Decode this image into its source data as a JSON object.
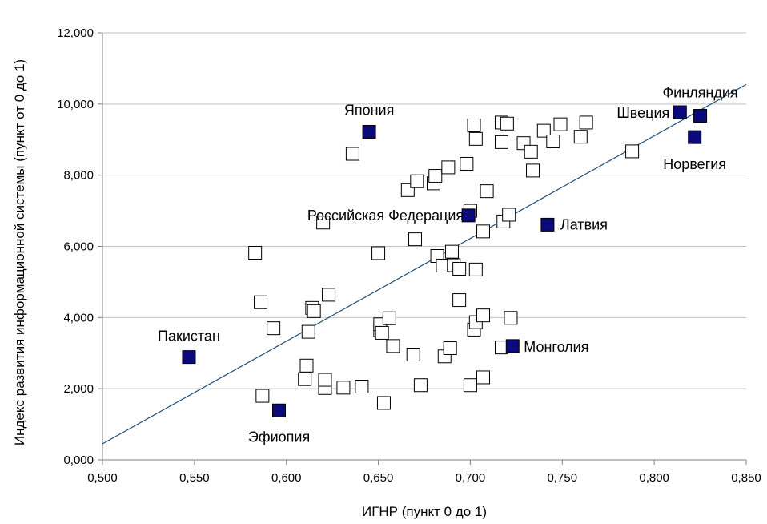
{
  "chart_data": {
    "type": "scatter",
    "xlabel": "ИГНР (пункт 0 до 1)",
    "ylabel": "Индекс развития информационной системы (пункт от 0 до 1)",
    "xlim": [
      0.5,
      0.85
    ],
    "ylim": [
      0,
      12
    ],
    "x_ticks": [
      0.5,
      0.55,
      0.6,
      0.65,
      0.7,
      0.75,
      0.8,
      0.85
    ],
    "y_ticks": [
      0,
      2,
      4,
      6,
      8,
      10,
      12
    ],
    "x_tick_labels": [
      "0,500",
      "0,550",
      "0,600",
      "0,650",
      "0,700",
      "0,750",
      "0,800",
      "0,850"
    ],
    "y_tick_labels": [
      "0,000",
      "2,000",
      "4,000",
      "6,000",
      "8,000",
      "10,000",
      "12,000"
    ],
    "grid": "horizontal",
    "legend": "none",
    "colors": {
      "highlight": "#0a0a7a",
      "trend": "#1f4e79",
      "grid": "#c0c0c0",
      "open_marker": "#ffffff"
    },
    "trendline": {
      "x": [
        0.5,
        0.85
      ],
      "y": [
        0.45,
        10.55
      ]
    },
    "highlighted": [
      {
        "label": "Пакистан",
        "x": 0.547,
        "y": 2.89
      },
      {
        "label": "Эфиопия",
        "x": 0.596,
        "y": 1.39
      },
      {
        "label": "Япония",
        "x": 0.645,
        "y": 9.22
      },
      {
        "label": "Российская Федерация",
        "x": 0.699,
        "y": 6.87
      },
      {
        "label": "Латвия",
        "x": 0.742,
        "y": 6.61
      },
      {
        "label": "Монголия",
        "x": 0.723,
        "y": 3.2
      },
      {
        "label": "Швеция",
        "x": 0.814,
        "y": 9.77
      },
      {
        "label": "Финляндия",
        "x": 0.825,
        "y": 9.67
      },
      {
        "label": "Норвегия",
        "x": 0.822,
        "y": 9.07
      }
    ],
    "points": [
      {
        "x": 0.583,
        "y": 5.82
      },
      {
        "x": 0.586,
        "y": 4.43
      },
      {
        "x": 0.587,
        "y": 1.8
      },
      {
        "x": 0.593,
        "y": 3.7
      },
      {
        "x": 0.61,
        "y": 2.27
      },
      {
        "x": 0.611,
        "y": 2.65
      },
      {
        "x": 0.612,
        "y": 3.6
      },
      {
        "x": 0.614,
        "y": 4.27
      },
      {
        "x": 0.615,
        "y": 4.18
      },
      {
        "x": 0.62,
        "y": 6.67
      },
      {
        "x": 0.621,
        "y": 2.02
      },
      {
        "x": 0.621,
        "y": 2.25
      },
      {
        "x": 0.623,
        "y": 4.64
      },
      {
        "x": 0.631,
        "y": 2.03
      },
      {
        "x": 0.636,
        "y": 8.6
      },
      {
        "x": 0.641,
        "y": 2.06
      },
      {
        "x": 0.65,
        "y": 5.81
      },
      {
        "x": 0.651,
        "y": 3.65
      },
      {
        "x": 0.651,
        "y": 3.81
      },
      {
        "x": 0.652,
        "y": 3.57
      },
      {
        "x": 0.653,
        "y": 1.6
      },
      {
        "x": 0.656,
        "y": 3.98
      },
      {
        "x": 0.658,
        "y": 3.2
      },
      {
        "x": 0.666,
        "y": 7.58
      },
      {
        "x": 0.669,
        "y": 2.96
      },
      {
        "x": 0.67,
        "y": 6.2
      },
      {
        "x": 0.671,
        "y": 7.83
      },
      {
        "x": 0.673,
        "y": 2.1
      },
      {
        "x": 0.68,
        "y": 7.77
      },
      {
        "x": 0.681,
        "y": 7.98
      },
      {
        "x": 0.682,
        "y": 5.73
      },
      {
        "x": 0.685,
        "y": 5.46
      },
      {
        "x": 0.686,
        "y": 2.91
      },
      {
        "x": 0.688,
        "y": 8.22
      },
      {
        "x": 0.689,
        "y": 3.14
      },
      {
        "x": 0.69,
        "y": 5.85
      },
      {
        "x": 0.691,
        "y": 5.47
      },
      {
        "x": 0.694,
        "y": 4.49
      },
      {
        "x": 0.694,
        "y": 5.37
      },
      {
        "x": 0.698,
        "y": 8.32
      },
      {
        "x": 0.7,
        "y": 7.0
      },
      {
        "x": 0.7,
        "y": 2.1
      },
      {
        "x": 0.702,
        "y": 3.66
      },
      {
        "x": 0.702,
        "y": 9.4
      },
      {
        "x": 0.703,
        "y": 9.02
      },
      {
        "x": 0.703,
        "y": 5.35
      },
      {
        "x": 0.703,
        "y": 3.87
      },
      {
        "x": 0.707,
        "y": 2.32
      },
      {
        "x": 0.707,
        "y": 6.42
      },
      {
        "x": 0.707,
        "y": 4.06
      },
      {
        "x": 0.709,
        "y": 7.55
      },
      {
        "x": 0.717,
        "y": 9.48
      },
      {
        "x": 0.717,
        "y": 8.93
      },
      {
        "x": 0.717,
        "y": 3.16
      },
      {
        "x": 0.718,
        "y": 6.7
      },
      {
        "x": 0.72,
        "y": 9.45
      },
      {
        "x": 0.721,
        "y": 6.89
      },
      {
        "x": 0.722,
        "y": 3.99
      },
      {
        "x": 0.729,
        "y": 8.9
      },
      {
        "x": 0.733,
        "y": 8.66
      },
      {
        "x": 0.734,
        "y": 8.13
      },
      {
        "x": 0.74,
        "y": 9.25
      },
      {
        "x": 0.745,
        "y": 8.95
      },
      {
        "x": 0.749,
        "y": 9.43
      },
      {
        "x": 0.76,
        "y": 9.08
      },
      {
        "x": 0.763,
        "y": 9.48
      },
      {
        "x": 0.788,
        "y": 8.67
      }
    ]
  }
}
